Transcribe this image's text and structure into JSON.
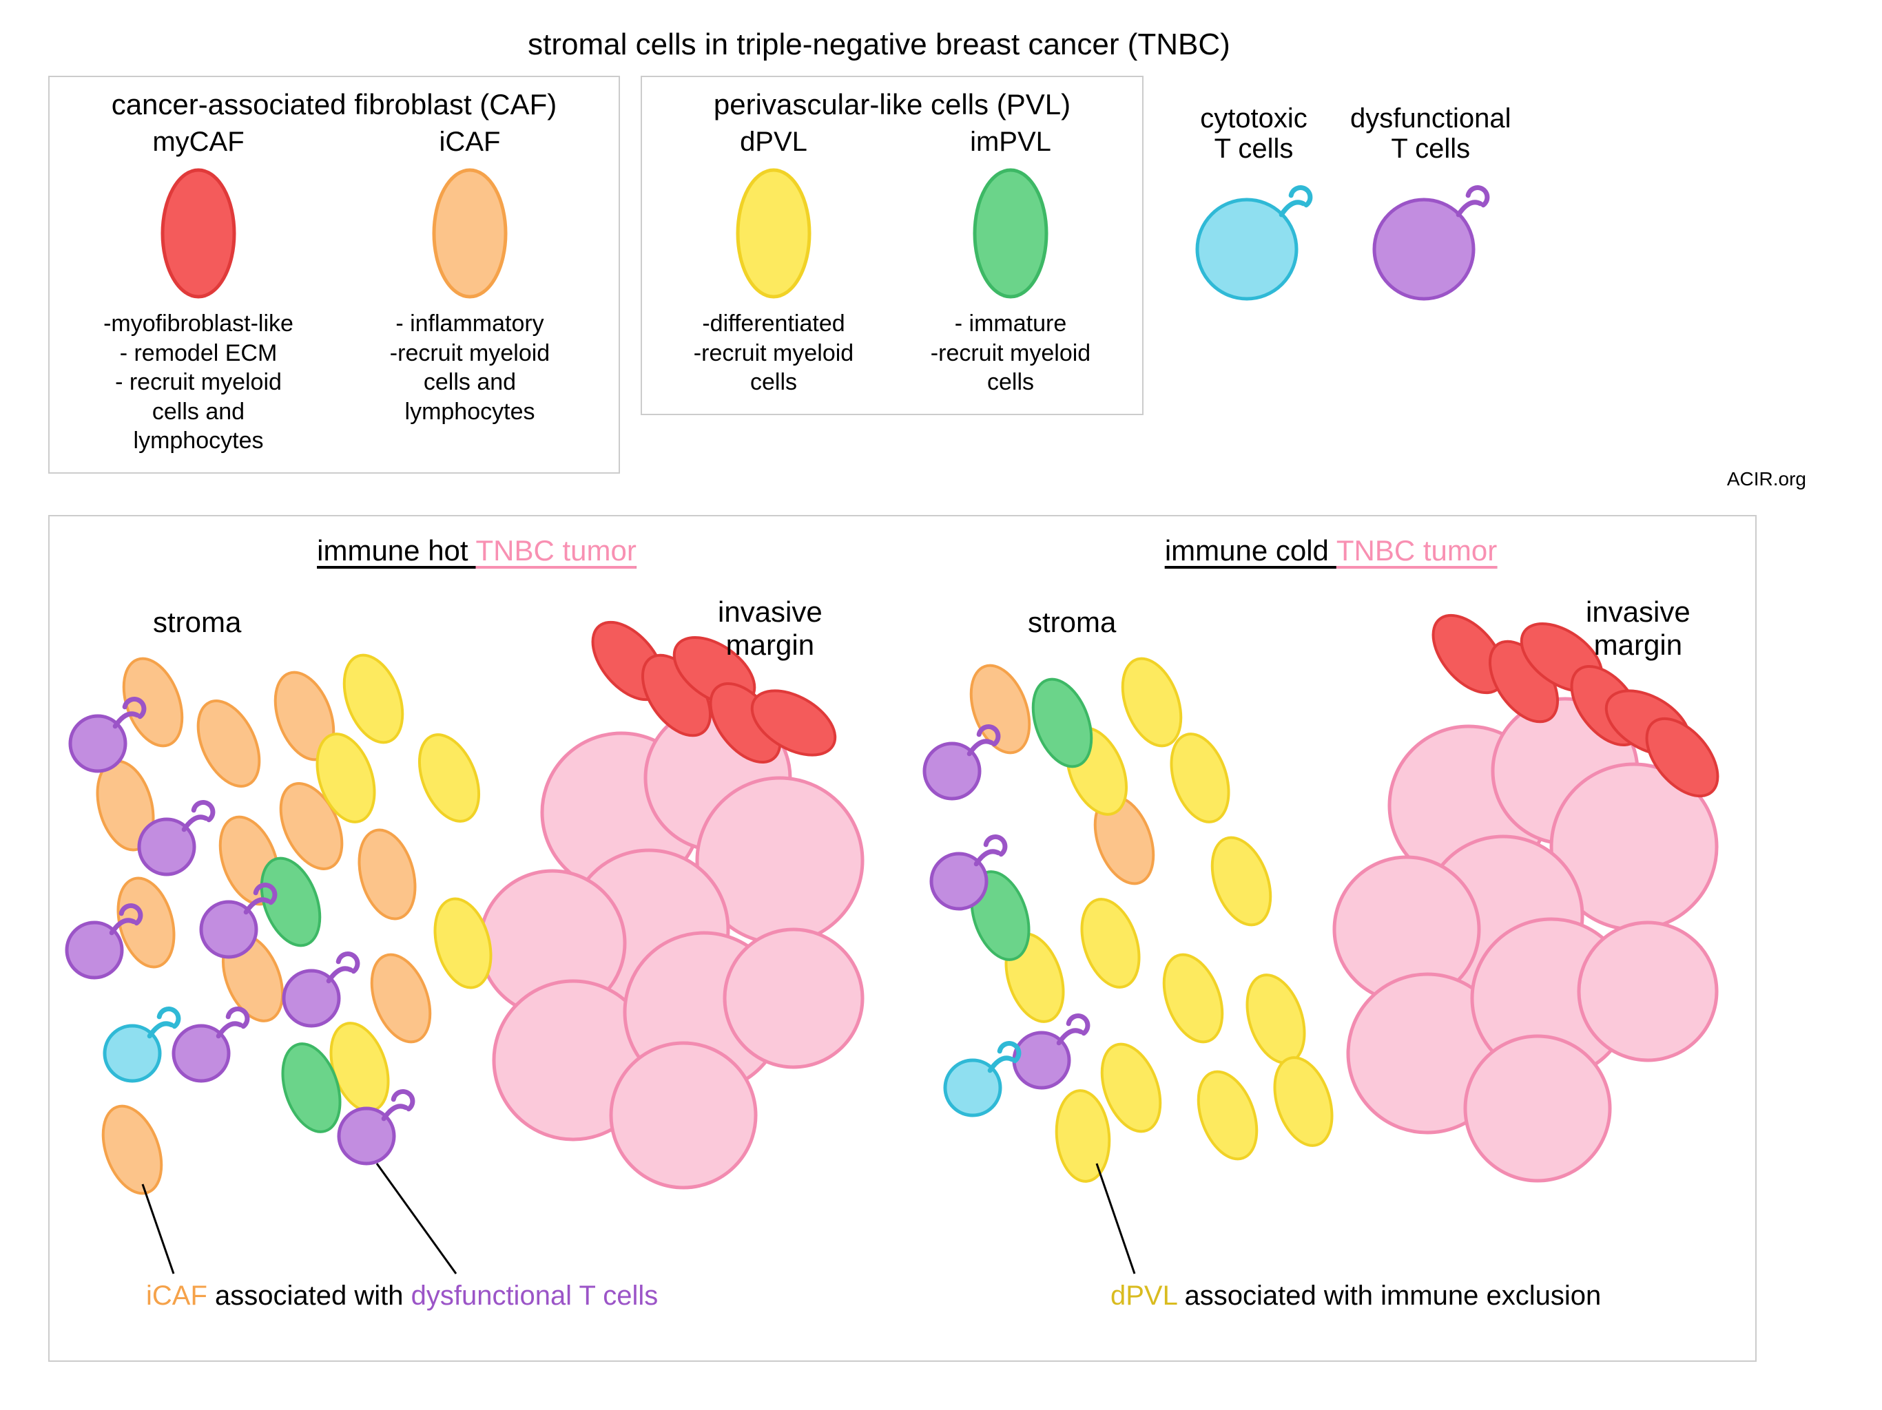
{
  "title": "stromal cells in triple-negative breast cancer (TNBC)",
  "attribution": "ACIR.org",
  "colors": {
    "myCAF_fill": "#f45b5b",
    "myCAF_stroke": "#e03a3a",
    "iCAF_fill": "#fcc48a",
    "iCAF_stroke": "#f5a24a",
    "dPVL_fill": "#fdea5f",
    "dPVL_stroke": "#f1d226",
    "imPVL_fill": "#6bd48a",
    "imPVL_stroke": "#3db865",
    "cytoT_fill": "#8fdff0",
    "cytoT_stroke": "#2fb9d6",
    "dysT_fill": "#c28de0",
    "dysT_stroke": "#9b54c7",
    "tumor_fill": "#fbc9da",
    "tumor_stroke": "#f28bb0",
    "text_iCAF": "#f5a24a",
    "text_dysT": "#9b54c7",
    "text_dPVL": "#d9bb1f",
    "text_pink": "#f890b2"
  },
  "legend": {
    "caf": {
      "title": "cancer-associated fibroblast (CAF)",
      "my": {
        "name": "myCAF",
        "desc": "-myofibroblast-like\n- remodel ECM\n- recruit myeloid\ncells and\nlymphocytes"
      },
      "i": {
        "name": "iCAF",
        "desc": "- inflammatory\n-recruit myeloid\ncells and\nlymphocytes"
      }
    },
    "pvl": {
      "title": "perivascular-like cells (PVL)",
      "d": {
        "name": "dPVL",
        "desc": "-differentiated\n-recruit myeloid\ncells"
      },
      "im": {
        "name": "imPVL",
        "desc": "- immature\n-recruit myeloid\ncells"
      }
    },
    "cytoT": "cytotoxic\nT cells",
    "dysT": "dysfunctional\nT cells"
  },
  "hot": {
    "title_a": "immune hot ",
    "title_b": "TNBC tumor",
    "stroma": "stroma",
    "margin": "invasive\nmargin",
    "caption_iCAF": "iCAF",
    "caption_mid": " associated with ",
    "caption_dysT": "dysfunctional T cells",
    "cells": {
      "iCAF": [
        [
          150,
          270,
          -20
        ],
        [
          260,
          330,
          -25
        ],
        [
          370,
          290,
          -20
        ],
        [
          110,
          420,
          -15
        ],
        [
          290,
          500,
          -20
        ],
        [
          140,
          590,
          -15
        ],
        [
          380,
          450,
          -25
        ],
        [
          490,
          520,
          -15
        ],
        [
          295,
          670,
          -22
        ],
        [
          510,
          700,
          -20
        ],
        [
          120,
          920,
          -20
        ]
      ],
      "dPVL": [
        [
          470,
          265,
          -20
        ],
        [
          430,
          380,
          -18
        ],
        [
          580,
          380,
          -22
        ],
        [
          600,
          620,
          -15
        ],
        [
          450,
          800,
          -18
        ]
      ],
      "imPVL": [
        [
          350,
          560,
          -20
        ],
        [
          380,
          830,
          -18
        ]
      ],
      "myCAF": [
        [
          840,
          210,
          -40
        ],
        [
          910,
          260,
          -35
        ],
        [
          965,
          225,
          -55
        ],
        [
          1010,
          300,
          -38
        ],
        [
          1080,
          300,
          -60
        ]
      ],
      "dysT": [
        [
          70,
          330
        ],
        [
          170,
          480
        ],
        [
          65,
          630
        ],
        [
          260,
          600
        ],
        [
          380,
          700
        ],
        [
          220,
          780
        ],
        [
          460,
          900
        ]
      ],
      "cytoT": [
        [
          120,
          780
        ]
      ],
      "tumor": [
        [
          830,
          430,
          115
        ],
        [
          970,
          380,
          105
        ],
        [
          1060,
          500,
          120
        ],
        [
          870,
          600,
          115
        ],
        [
          730,
          620,
          105
        ],
        [
          760,
          790,
          115
        ],
        [
          950,
          720,
          115
        ],
        [
          1080,
          700,
          100
        ],
        [
          920,
          870,
          105
        ]
      ]
    }
  },
  "cold": {
    "title_a": "immune cold ",
    "title_b": "TNBC tumor",
    "stroma": "stroma",
    "margin": "invasive\nmargin",
    "caption_dPVL": "dPVL",
    "caption_rest": " associated with immune exclusion",
    "cells": {
      "iCAF": [
        [
          140,
          280,
          -20
        ],
        [
          320,
          470,
          -20
        ]
      ],
      "dPVL": [
        [
          360,
          270,
          -20
        ],
        [
          280,
          370,
          -22
        ],
        [
          430,
          380,
          -18
        ],
        [
          490,
          530,
          -20
        ],
        [
          300,
          620,
          -18
        ],
        [
          190,
          670,
          -18
        ],
        [
          420,
          700,
          -20
        ],
        [
          540,
          730,
          -18
        ],
        [
          330,
          830,
          -20
        ],
        [
          260,
          900,
          -5
        ],
        [
          470,
          870,
          -20
        ],
        [
          580,
          850,
          -18
        ]
      ],
      "imPVL": [
        [
          230,
          300,
          -20
        ],
        [
          140,
          580,
          -18
        ]
      ],
      "myCAF": [
        [
          820,
          200,
          -40
        ],
        [
          900,
          240,
          -35
        ],
        [
          955,
          205,
          -55
        ],
        [
          1020,
          275,
          -38
        ],
        [
          1080,
          300,
          -60
        ],
        [
          1130,
          350,
          -40
        ]
      ],
      "dysT": [
        [
          70,
          370
        ],
        [
          80,
          530
        ],
        [
          200,
          790
        ]
      ],
      "cytoT": [
        [
          100,
          830
        ]
      ],
      "tumor": [
        [
          820,
          420,
          115
        ],
        [
          960,
          370,
          105
        ],
        [
          1060,
          480,
          120
        ],
        [
          870,
          580,
          115
        ],
        [
          730,
          600,
          105
        ],
        [
          760,
          780,
          115
        ],
        [
          940,
          700,
          115
        ],
        [
          1080,
          690,
          100
        ],
        [
          920,
          860,
          105
        ]
      ]
    }
  },
  "shapes": {
    "ellipse_legend": {
      "rx": 52,
      "ry": 92
    },
    "ellipse_small": {
      "rx": 38,
      "ry": 66
    },
    "tcell_legend_r": 72,
    "tcell_small_r": 40,
    "stroke_w": 5
  }
}
